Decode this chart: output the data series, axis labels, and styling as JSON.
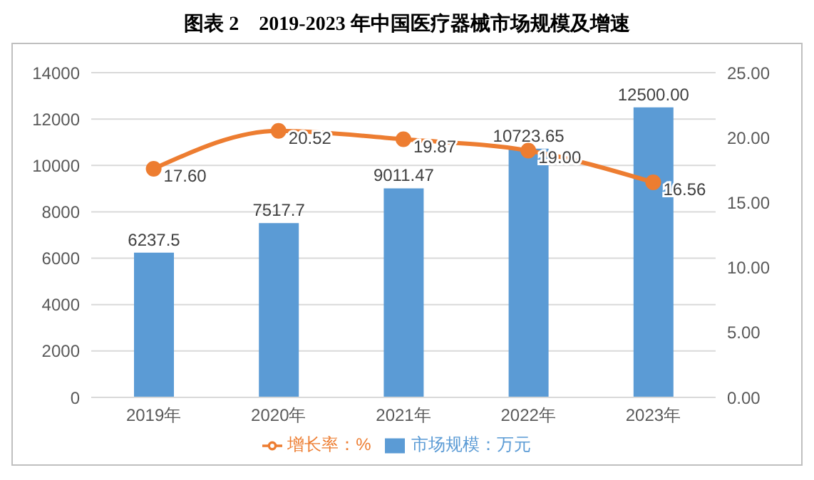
{
  "chart_data": {
    "type": "bar",
    "title": "图表 2　2019-2023 年中国医疗器械市场规模及增速",
    "categories": [
      "2019年",
      "2020年",
      "2021年",
      "2022年",
      "2023年"
    ],
    "series": [
      {
        "name": "市场规模：万元",
        "color": "#5b9bd5",
        "values": [
          6237.5,
          7517.7,
          9011.47,
          10723.65,
          12500.0
        ],
        "value_labels": [
          "6237.5",
          "7517.7",
          "9011.47",
          "10723.65",
          "12500.00"
        ]
      },
      {
        "name": "增长率：%",
        "type": "line",
        "axis": "y2",
        "color": "#ed7d31",
        "marker": "circle",
        "values": [
          17.6,
          20.52,
          19.87,
          19.0,
          16.56
        ],
        "value_labels": [
          "17.60",
          "20.52",
          "19.87",
          "19.00",
          "16.56"
        ]
      }
    ],
    "ylim": [
      0,
      14000
    ],
    "yticks": [
      0,
      2000,
      4000,
      6000,
      8000,
      10000,
      12000,
      14000
    ],
    "y2lim": [
      0,
      25
    ],
    "y2ticks": [
      {
        "value": 0,
        "label": "0.00"
      },
      {
        "value": 5,
        "label": "5.00"
      },
      {
        "value": 10,
        "label": "10.00"
      },
      {
        "value": 15,
        "label": "15.00"
      },
      {
        "value": 20,
        "label": "20.00"
      },
      {
        "value": 25,
        "label": "25.00"
      }
    ],
    "grid": "y",
    "legend": "bottom"
  }
}
